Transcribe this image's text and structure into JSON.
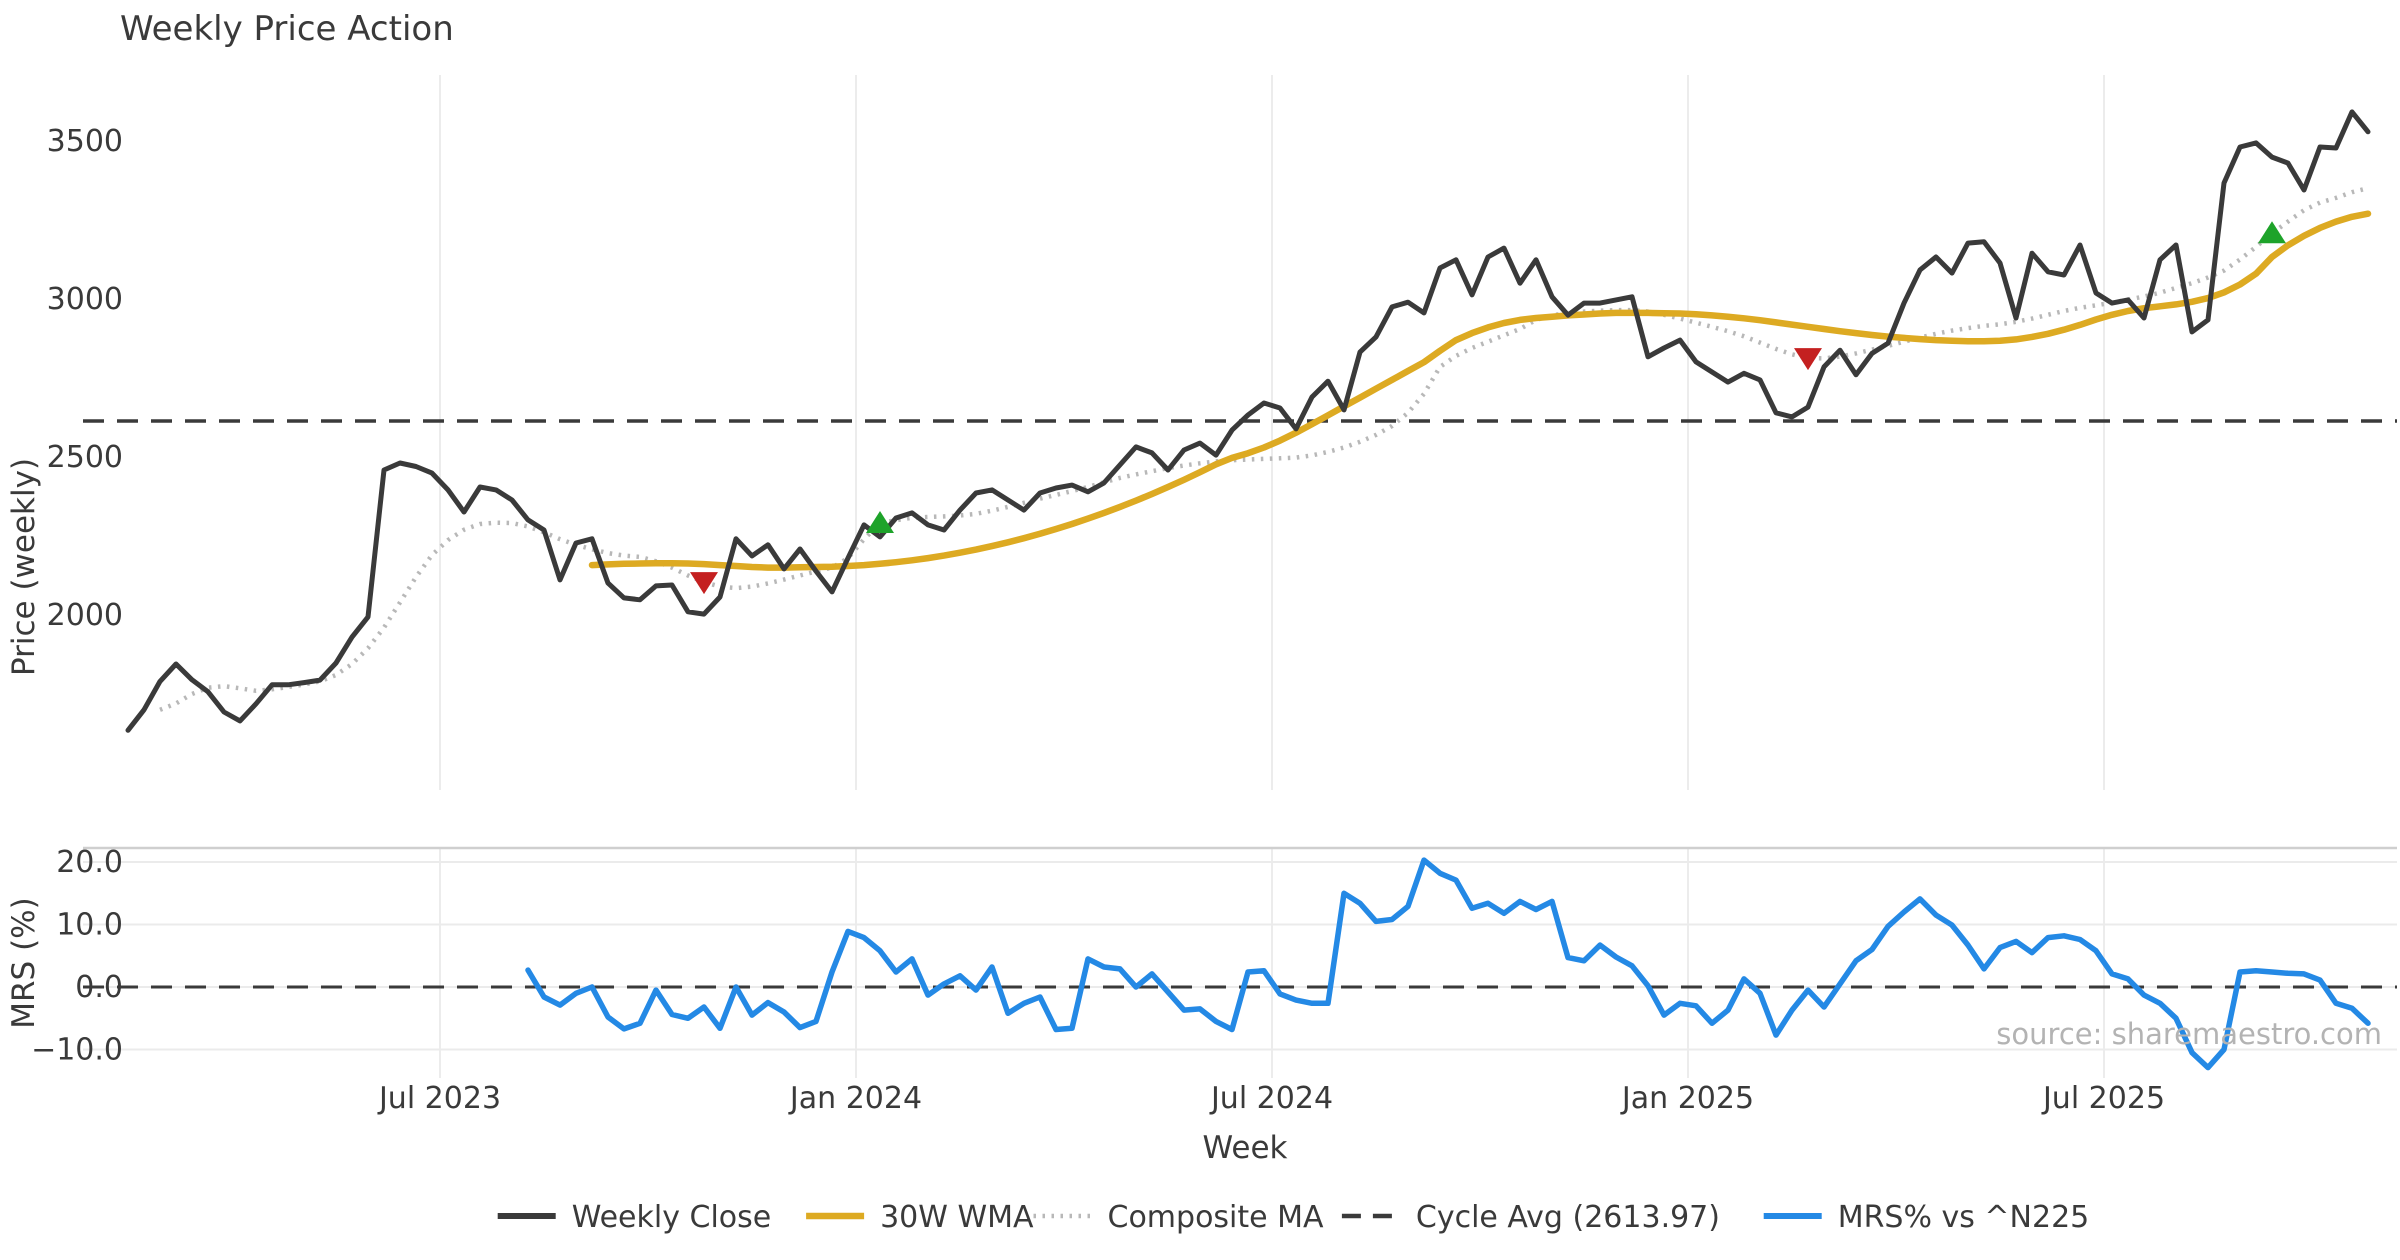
{
  "title": "Weekly Price Action",
  "watermark": "source: sharemaestro.com",
  "colors": {
    "close": "#3a3a3a",
    "wma": "#ddaa22",
    "composite": "#b8b8b8",
    "cycle": "#3a3a3a",
    "mrs": "#2489e5",
    "marker_down": "#c42020",
    "marker_up": "#1ea32a",
    "grid": "#ececec",
    "spine": "#cfcfcf",
    "text": "#3a3a3a",
    "watermark_color": "#b3b3b3"
  },
  "legend": [
    {
      "label": "Weekly Close",
      "style": "solid",
      "color": "#3a3a3a"
    },
    {
      "label": "30W WMA",
      "style": "solid",
      "color": "#ddaa22"
    },
    {
      "label": "Composite MA",
      "style": "dotted",
      "color": "#b8b8b8"
    },
    {
      "label": "Cycle Avg (2613.97)",
      "style": "dashed",
      "color": "#3a3a3a"
    },
    {
      "label": "MRS% vs ^N225",
      "style": "solid",
      "color": "#2489e5"
    }
  ],
  "chart_data": [
    {
      "type": "line",
      "panel": "price",
      "title": "Weekly Price Action",
      "xlabel": "Week",
      "ylabel": "Price (weekly)",
      "yticks": [
        2000,
        2500,
        3000,
        3500
      ],
      "ylim": [
        1450,
        3710
      ],
      "xtick_labels": [
        "Jul 2023",
        "Jan 2024",
        "Jul 2024",
        "Jan 2025",
        "Jul 2025"
      ],
      "xtick_weeks": [
        19.5,
        45.5,
        71.5,
        97.5,
        123.5
      ],
      "cycle_avg": 2613.97,
      "grid": "vertical-only",
      "series": [
        {
          "name": "Weekly Close",
          "start_week": 0,
          "values": [
            1635,
            1700,
            1790,
            1845,
            1795,
            1757,
            1693,
            1665,
            1719,
            1779,
            1779,
            1786,
            1794,
            1848,
            1930,
            1994,
            2459,
            2481,
            2470,
            2449,
            2396,
            2326,
            2405,
            2396,
            2364,
            2301,
            2269,
            2111,
            2228,
            2241,
            2101,
            2054,
            2048,
            2092,
            2095,
            2010,
            2003,
            2057,
            2241,
            2187,
            2222,
            2146,
            2209,
            2139,
            2073,
            2180,
            2285,
            2247,
            2307,
            2323,
            2285,
            2269,
            2332,
            2386,
            2396,
            2364,
            2332,
            2386,
            2402,
            2411,
            2390,
            2418,
            2475,
            2532,
            2513,
            2459,
            2522,
            2544,
            2506,
            2585,
            2633,
            2671,
            2655,
            2589,
            2690,
            2740,
            2649,
            2832,
            2880,
            2975,
            2990,
            2956,
            3098,
            3124,
            3013,
            3133,
            3161,
            3050,
            3124,
            3007,
            2949,
            2987,
            2987,
            2997,
            3007,
            2817,
            2845,
            2870,
            2801,
            2769,
            2737,
            2765,
            2744,
            2640,
            2627,
            2658,
            2785,
            2838,
            2760,
            2828,
            2860,
            2987,
            3092,
            3133,
            3082,
            3177,
            3181,
            3114,
            2940,
            3145,
            3086,
            3076,
            3171,
            3019,
            2987,
            2997,
            2940,
            3124,
            3171,
            2896,
            2934,
            3367,
            3481,
            3494,
            3449,
            3430,
            3345,
            3481,
            3478,
            3592,
            3529
          ]
        },
        {
          "name": "30W WMA",
          "start_week": 29,
          "values": [
            2158,
            2160,
            2162,
            2163,
            2164,
            2164,
            2163,
            2161,
            2158,
            2155,
            2152,
            2150,
            2150,
            2151,
            2152,
            2153,
            2155,
            2158,
            2162,
            2167,
            2173,
            2180,
            2188,
            2197,
            2207,
            2218,
            2230,
            2243,
            2257,
            2272,
            2288,
            2305,
            2323,
            2342,
            2362,
            2383,
            2405,
            2428,
            2452,
            2477,
            2497,
            2512,
            2530,
            2552,
            2577,
            2604,
            2632,
            2660,
            2688,
            2716,
            2744,
            2772,
            2800,
            2836,
            2870,
            2892,
            2910,
            2924,
            2934,
            2940,
            2944,
            2948,
            2951,
            2954,
            2956,
            2956,
            2956,
            2955,
            2954,
            2952,
            2948,
            2944,
            2939,
            2933,
            2926,
            2919,
            2912,
            2905,
            2898,
            2892,
            2886,
            2881,
            2877,
            2873,
            2870,
            2868,
            2866,
            2866,
            2868,
            2872,
            2880,
            2890,
            2903,
            2918,
            2935,
            2950,
            2962,
            2971,
            2977,
            2983,
            2991,
            3003,
            3021,
            3046,
            3080,
            3133,
            3170,
            3200,
            3225,
            3245,
            3260,
            3270
          ]
        },
        {
          "name": "Composite MA",
          "start_week": 2,
          "values": [
            1700,
            1720,
            1750,
            1770,
            1775,
            1768,
            1760,
            1765,
            1772,
            1780,
            1790,
            1810,
            1845,
            1895,
            1960,
            2040,
            2120,
            2190,
            2237,
            2270,
            2288,
            2292,
            2291,
            2280,
            2262,
            2240,
            2222,
            2208,
            2196,
            2188,
            2184,
            2170,
            2150,
            2125,
            2104,
            2090,
            2085,
            2090,
            2100,
            2112,
            2125,
            2138,
            2150,
            2180,
            2240,
            2291,
            2300,
            2308,
            2310,
            2312,
            2315,
            2320,
            2330,
            2342,
            2355,
            2368,
            2380,
            2392,
            2405,
            2420,
            2434,
            2445,
            2455,
            2465,
            2473,
            2480,
            2486,
            2490,
            2492,
            2494,
            2496,
            2498,
            2505,
            2516,
            2530,
            2548,
            2570,
            2598,
            2640,
            2700,
            2785,
            2820,
            2845,
            2865,
            2885,
            2905,
            2934,
            2948,
            2956,
            2960,
            2963,
            2965,
            2965,
            2960,
            2950,
            2938,
            2925,
            2912,
            2898,
            2882,
            2862,
            2842,
            2825,
            2813,
            2812,
            2818,
            2828,
            2840,
            2852,
            2865,
            2878,
            2890,
            2900,
            2908,
            2915,
            2920,
            2928,
            2938,
            2950,
            2962,
            2972,
            2980,
            2988,
            2998,
            3008,
            3020,
            3035,
            3050,
            3068,
            3090,
            3125,
            3165,
            3208,
            3245,
            3281,
            3305,
            3320,
            3338,
            3351
          ]
        }
      ],
      "markers": [
        {
          "week": 36,
          "value": 2104,
          "direction": "down"
        },
        {
          "week": 47,
          "value": 2291,
          "direction": "up"
        },
        {
          "week": 105,
          "value": 2813,
          "direction": "down"
        },
        {
          "week": 134,
          "value": 3208,
          "direction": "up"
        }
      ]
    },
    {
      "type": "line",
      "panel": "mrs",
      "ylabel": "MRS (%)",
      "yticks": [
        -10.0,
        0.0,
        10.0,
        20.0
      ],
      "ytick_labels": [
        "−10.0",
        "0.0",
        "10.0",
        "20.0"
      ],
      "ylim": [
        -14.6,
        22.2
      ],
      "zero_line": 0.0,
      "grid": "both",
      "series": [
        {
          "name": "MRS% vs ^N225",
          "start_week": 25,
          "values": [
            2.7,
            -1.6,
            -2.9,
            -1.0,
            0.0,
            -4.8,
            -6.7,
            -5.8,
            -0.5,
            -4.4,
            -5.0,
            -3.2,
            -6.6,
            0.0,
            -4.5,
            -2.5,
            -4.0,
            -6.5,
            -5.5,
            2.4,
            8.9,
            7.9,
            5.8,
            2.4,
            4.5,
            -1.3,
            0.5,
            1.8,
            -0.5,
            3.2,
            -4.2,
            -2.6,
            -1.6,
            -6.8,
            -6.6,
            4.5,
            3.2,
            2.9,
            0.0,
            2.1,
            -0.8,
            -3.7,
            -3.5,
            -5.5,
            -6.8,
            2.4,
            2.6,
            -1.1,
            -2.1,
            -2.6,
            -2.6,
            15.0,
            13.4,
            10.5,
            10.8,
            12.9,
            20.3,
            18.2,
            17.1,
            12.6,
            13.4,
            11.8,
            13.7,
            12.4,
            13.7,
            4.7,
            4.2,
            6.7,
            4.8,
            3.4,
            0.2,
            -4.5,
            -2.6,
            -3.0,
            -5.8,
            -3.7,
            1.3,
            -1.0,
            -7.7,
            -3.7,
            -0.5,
            -3.2,
            0.5,
            4.2,
            6.0,
            9.7,
            12.0,
            14.1,
            11.5,
            9.9,
            6.7,
            2.9,
            6.3,
            7.3,
            5.5,
            7.9,
            8.2,
            7.6,
            5.8,
            2.1,
            1.3,
            -1.3,
            -2.6,
            -5.0,
            -10.5,
            -12.9,
            -10.0,
            2.4,
            2.6,
            2.4,
            2.2,
            2.1,
            1.1,
            -2.6,
            -3.4,
            -5.8
          ]
        }
      ]
    }
  ],
  "axes": {
    "price_ylabel": "Price (weekly)",
    "mrs_ylabel": "MRS (%)",
    "xlabel": "Week"
  }
}
